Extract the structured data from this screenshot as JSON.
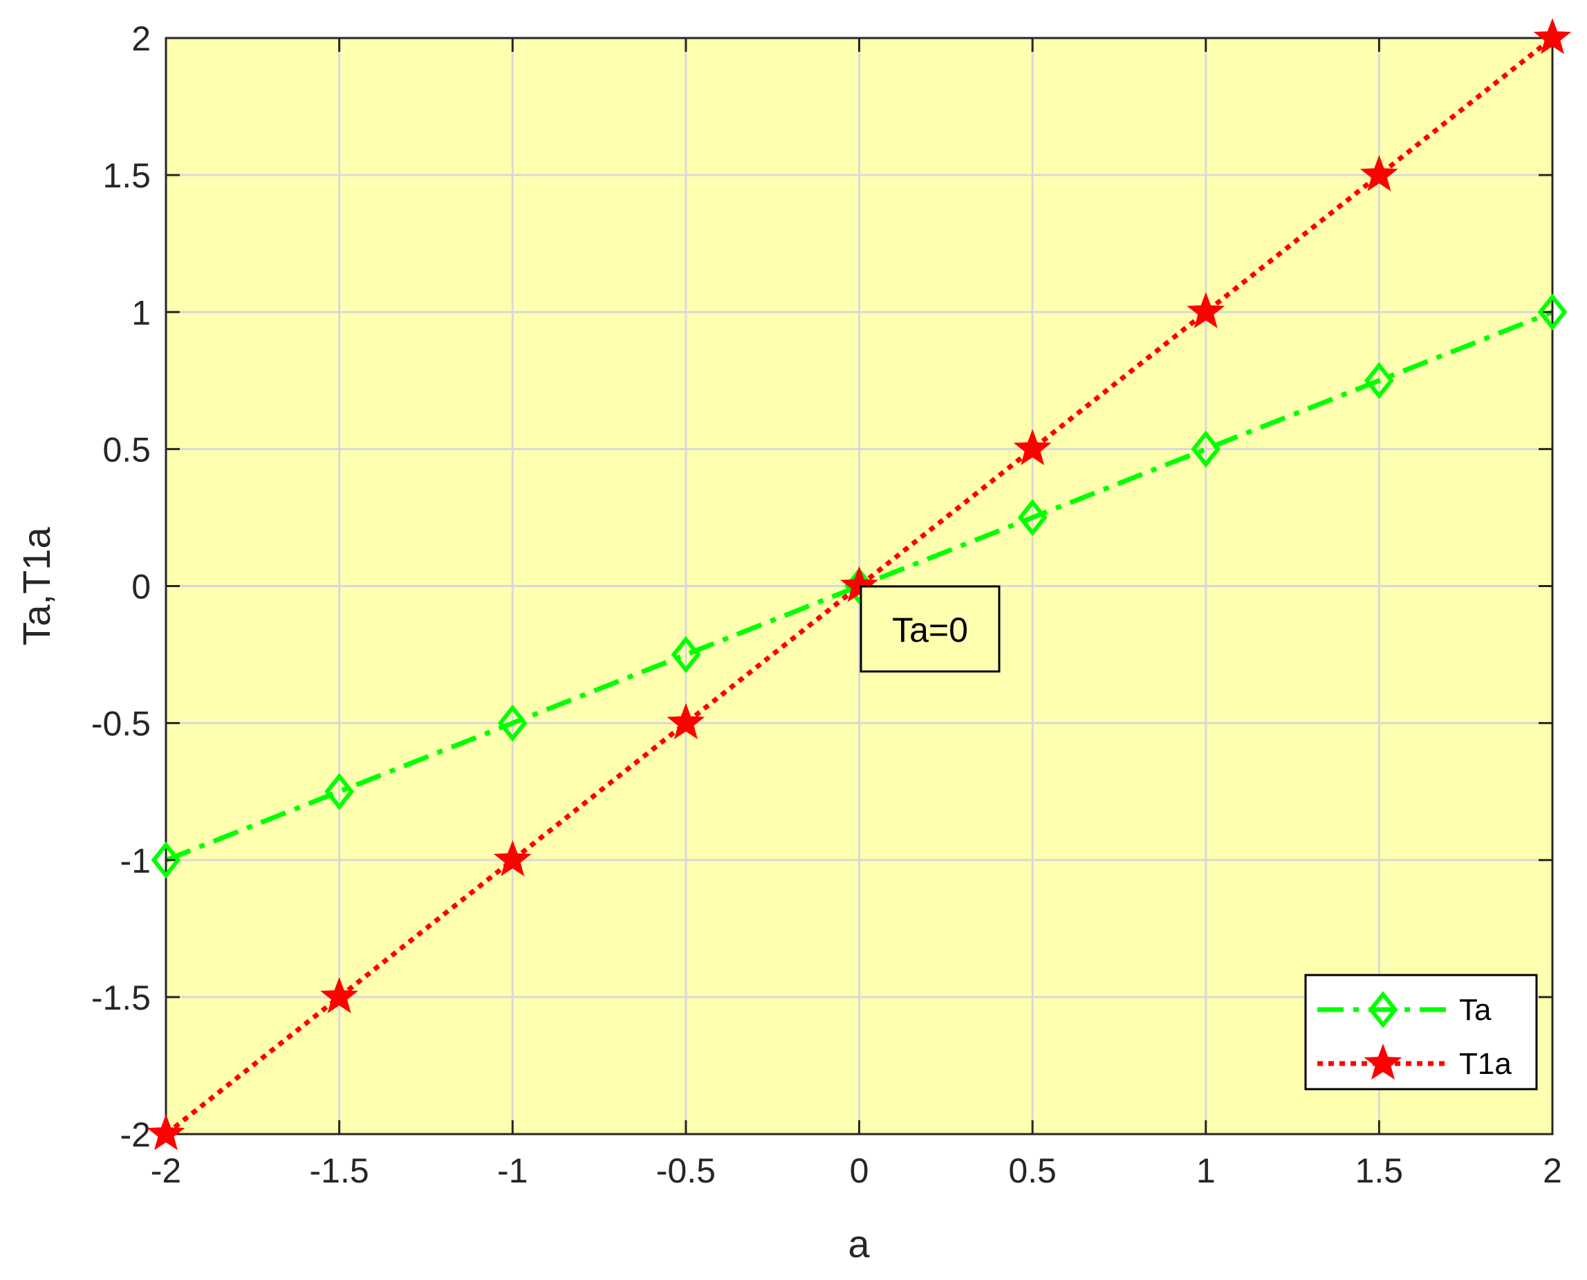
{
  "chart_data": {
    "type": "line",
    "title": "",
    "xlabel": "a",
    "ylabel": "Ta,T1a",
    "xlim": [
      -2,
      2
    ],
    "ylim": [
      -2,
      2
    ],
    "xticks": [
      -2,
      -1.5,
      -1,
      -0.5,
      0,
      0.5,
      1,
      1.5,
      2
    ],
    "yticks": [
      -2,
      -1.5,
      -1,
      -0.5,
      0,
      0.5,
      1,
      1.5,
      2
    ],
    "xtick_labels": [
      "-2",
      "-1.5",
      "-1",
      "-0.5",
      "0",
      "0.5",
      "1",
      "1.5",
      "2"
    ],
    "ytick_labels": [
      "-2",
      "-1.5",
      "-1",
      "-0.5",
      "0",
      "0.5",
      "1",
      "1.5",
      "2"
    ],
    "grid": true,
    "background": "#ffffb0",
    "legend_position": "bottom-right",
    "x": [
      -2,
      -1.5,
      -1,
      -0.5,
      0,
      0.5,
      1,
      1.5,
      2
    ],
    "series": [
      {
        "name": "Ta",
        "values": [
          -1,
          -0.75,
          -0.5,
          -0.25,
          0,
          0.25,
          0.5,
          0.75,
          1
        ],
        "color": "#00ff00",
        "line_style": "dash-dot",
        "marker": "diamond"
      },
      {
        "name": "T1a",
        "values": [
          -2,
          -1.5,
          -1,
          -0.5,
          0,
          0.5,
          1,
          1.5,
          2
        ],
        "color": "#ff0000",
        "line_style": "dotted",
        "marker": "star"
      }
    ],
    "annotations": [
      {
        "text": "Ta=0",
        "x": 0,
        "y": 0
      }
    ]
  }
}
